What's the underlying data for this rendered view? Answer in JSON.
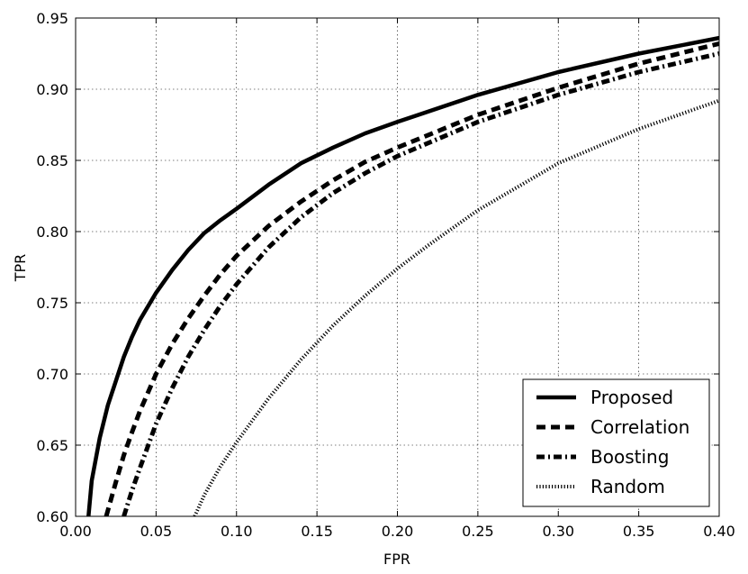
{
  "chart_data": {
    "type": "line",
    "title": "",
    "xlabel": "FPR",
    "ylabel": "TPR",
    "xlim": [
      0.0,
      0.4
    ],
    "ylim": [
      0.6,
      0.95
    ],
    "grid": true,
    "legend_position": "lower-right",
    "x_ticks": [
      "0.00",
      "0.05",
      "0.10",
      "0.15",
      "0.20",
      "0.25",
      "0.30",
      "0.35",
      "0.40"
    ],
    "y_ticks": [
      "0.60",
      "0.65",
      "0.70",
      "0.75",
      "0.80",
      "0.85",
      "0.90",
      "0.95"
    ],
    "series": [
      {
        "name": "Proposed",
        "style": "solid",
        "x": [
          0.008,
          0.01,
          0.015,
          0.02,
          0.025,
          0.03,
          0.035,
          0.04,
          0.05,
          0.06,
          0.07,
          0.08,
          0.09,
          0.1,
          0.12,
          0.14,
          0.16,
          0.18,
          0.2,
          0.25,
          0.3,
          0.35,
          0.4
        ],
        "y": [
          0.6,
          0.625,
          0.655,
          0.678,
          0.695,
          0.712,
          0.726,
          0.738,
          0.757,
          0.773,
          0.787,
          0.799,
          0.808,
          0.816,
          0.833,
          0.848,
          0.859,
          0.869,
          0.877,
          0.896,
          0.912,
          0.925,
          0.936
        ]
      },
      {
        "name": "Correlation",
        "style": "dashed",
        "x": [
          0.019,
          0.025,
          0.03,
          0.035,
          0.04,
          0.05,
          0.06,
          0.07,
          0.08,
          0.09,
          0.1,
          0.12,
          0.14,
          0.16,
          0.18,
          0.2,
          0.25,
          0.3,
          0.35,
          0.4
        ],
        "y": [
          0.6,
          0.624,
          0.643,
          0.659,
          0.674,
          0.7,
          0.721,
          0.739,
          0.755,
          0.77,
          0.783,
          0.804,
          0.821,
          0.836,
          0.849,
          0.859,
          0.882,
          0.901,
          0.918,
          0.932
        ]
      },
      {
        "name": "Boosting",
        "style": "dashdot",
        "x": [
          0.03,
          0.035,
          0.04,
          0.05,
          0.06,
          0.07,
          0.08,
          0.09,
          0.1,
          0.12,
          0.14,
          0.16,
          0.18,
          0.2,
          0.25,
          0.3,
          0.35,
          0.4
        ],
        "y": [
          0.6,
          0.618,
          0.634,
          0.665,
          0.69,
          0.712,
          0.731,
          0.748,
          0.763,
          0.789,
          0.81,
          0.827,
          0.841,
          0.853,
          0.877,
          0.896,
          0.912,
          0.925
        ]
      },
      {
        "name": "Random",
        "style": "dotted",
        "x": [
          0.074,
          0.08,
          0.09,
          0.1,
          0.12,
          0.14,
          0.16,
          0.18,
          0.2,
          0.22,
          0.25,
          0.3,
          0.35,
          0.4
        ],
        "y": [
          0.6,
          0.615,
          0.635,
          0.652,
          0.683,
          0.71,
          0.734,
          0.755,
          0.774,
          0.791,
          0.815,
          0.848,
          0.872,
          0.892
        ]
      }
    ]
  }
}
